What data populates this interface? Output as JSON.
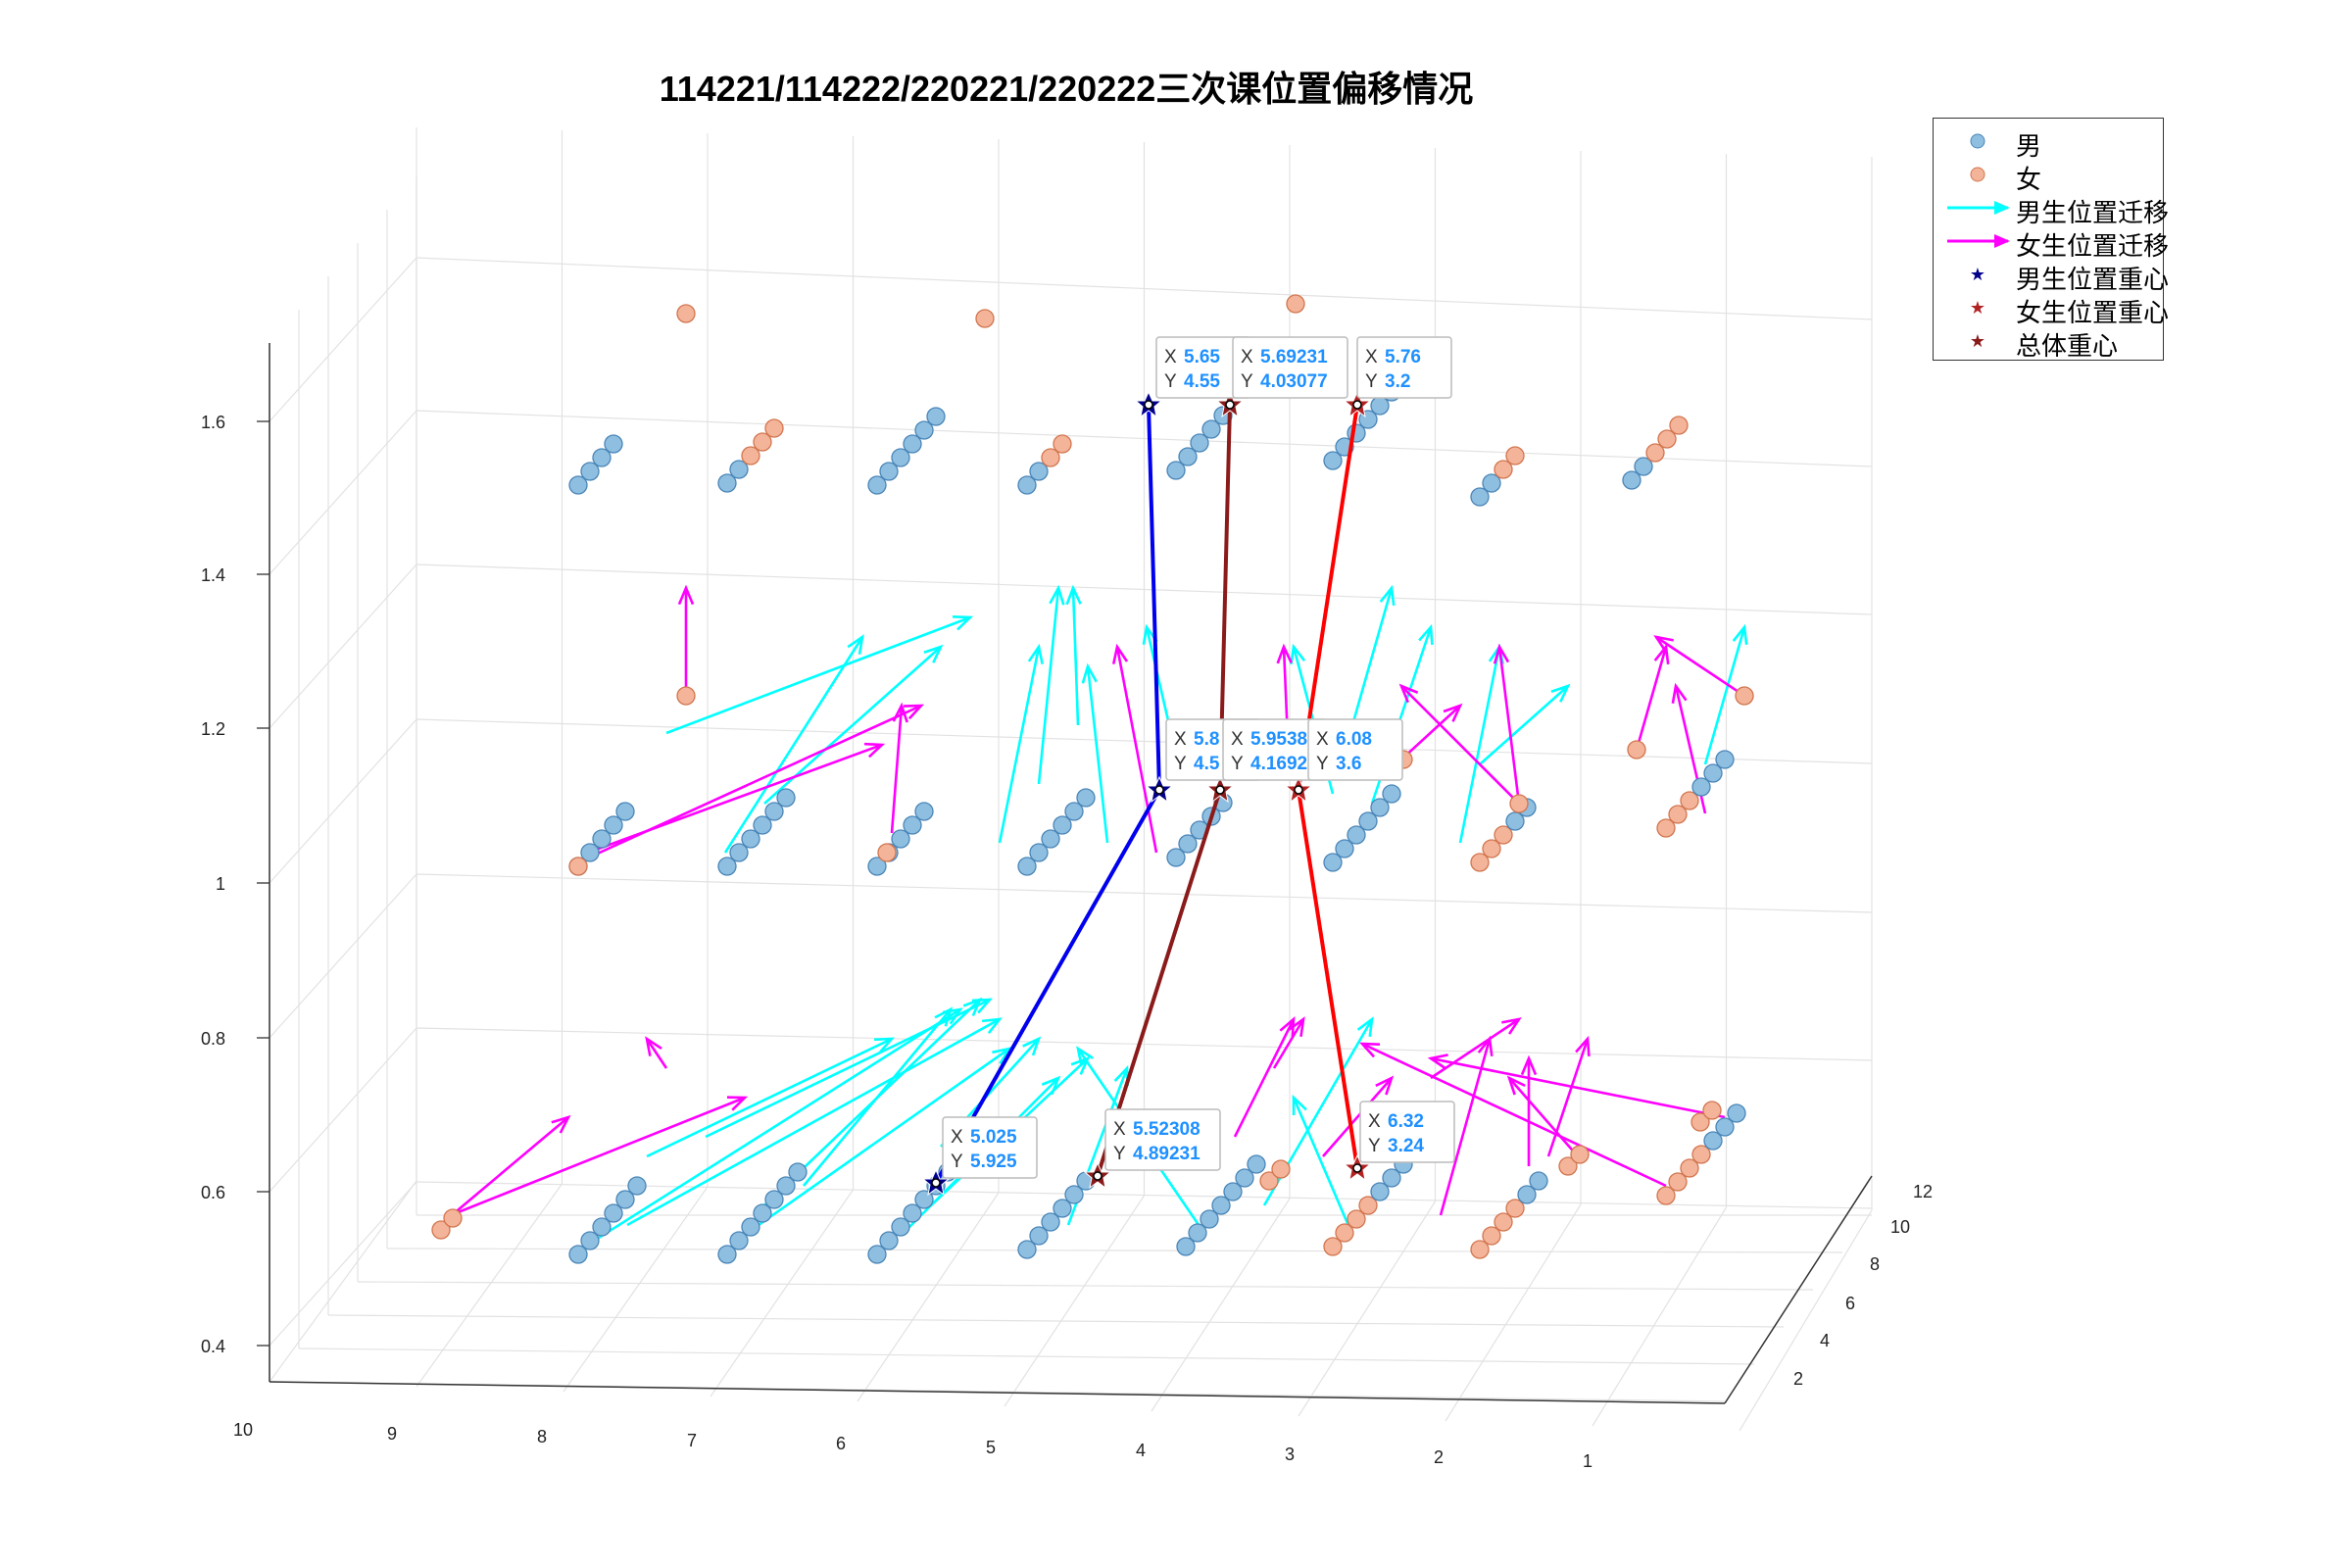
{
  "chart_data": {
    "type": "scatter",
    "title": "114221/114222/220221/220222三次课位置偏移情况",
    "xlabel": "",
    "ylabel": "",
    "zlabel": "",
    "z_ticks": [
      "0.4",
      "0.6",
      "0.8",
      "1",
      "1.2",
      "1.4",
      "1.6"
    ],
    "x_ticks": [
      "10",
      "9",
      "8",
      "7",
      "6",
      "5",
      "4",
      "3",
      "2",
      "1"
    ],
    "y_ticks": [
      "2",
      "4",
      "6",
      "8",
      "10",
      "12"
    ],
    "zlim": [
      0.4,
      1.7
    ],
    "grid": true,
    "legend_position": "top-right",
    "legend": [
      {
        "label": "男",
        "symbol": "circle",
        "color": "#8fbfe0"
      },
      {
        "label": "女",
        "symbol": "circle",
        "color": "#f4b49a"
      },
      {
        "label": "男生位置迁移",
        "symbol": "arrow",
        "color": "#00ffff"
      },
      {
        "label": "女生位置迁移",
        "symbol": "arrow",
        "color": "#ff00ff"
      },
      {
        "label": "男生位置重心",
        "symbol": "star",
        "color": "#00008b"
      },
      {
        "label": "女生位置重心",
        "symbol": "star",
        "color": "#b22222"
      },
      {
        "label": "总体重心",
        "symbol": "star",
        "color": "#8b1a1a"
      }
    ],
    "datatips": [
      {
        "series": "男生位置重心",
        "session": 1,
        "x": "5.025",
        "y": "5.925",
        "x_label": "X",
        "y_label": "Y"
      },
      {
        "series": "总体重心",
        "session": 1,
        "x": "5.52308",
        "y": "4.89231",
        "x_label": "X",
        "y_label": "Y"
      },
      {
        "series": "女生位置重心",
        "session": 1,
        "x": "6.32",
        "y": "3.24",
        "x_label": "X",
        "y_label": "Y"
      },
      {
        "series": "男生位置重心",
        "session": 2,
        "x": "5.8",
        "y": "4.5",
        "x_label": "X",
        "y_label": "Y"
      },
      {
        "series": "总体重心",
        "session": 2,
        "x": "5.9538",
        "y": "4.1692",
        "x_label": "X",
        "y_label": "Y"
      },
      {
        "series": "女生位置重心",
        "session": 2,
        "x": "6.08",
        "y": "3.6",
        "x_label": "X",
        "y_label": "Y"
      },
      {
        "series": "男生位置重心",
        "session": 3,
        "x": "5.65",
        "y": "4.55",
        "x_label": "X",
        "y_label": "Y"
      },
      {
        "series": "总体重心",
        "session": 3,
        "x": "5.69231",
        "y": "4.03077",
        "x_label": "X",
        "y_label": "Y"
      },
      {
        "series": "女生位置重心",
        "session": 3,
        "x": "5.76",
        "y": "3.2",
        "x_label": "X",
        "y_label": "Y"
      }
    ],
    "colors": {
      "male": "#8fbfe0",
      "male_edge": "#4a86b8",
      "female": "#f4b49a",
      "female_edge": "#d2764f",
      "male_arrow": "#00ffff",
      "female_arrow": "#ff00ff",
      "male_centroid_line": "#0000ee",
      "female_centroid_line": "#ff0000",
      "overall_centroid_line": "#8b1a1a",
      "datatip_value": "#1e90ff"
    }
  }
}
